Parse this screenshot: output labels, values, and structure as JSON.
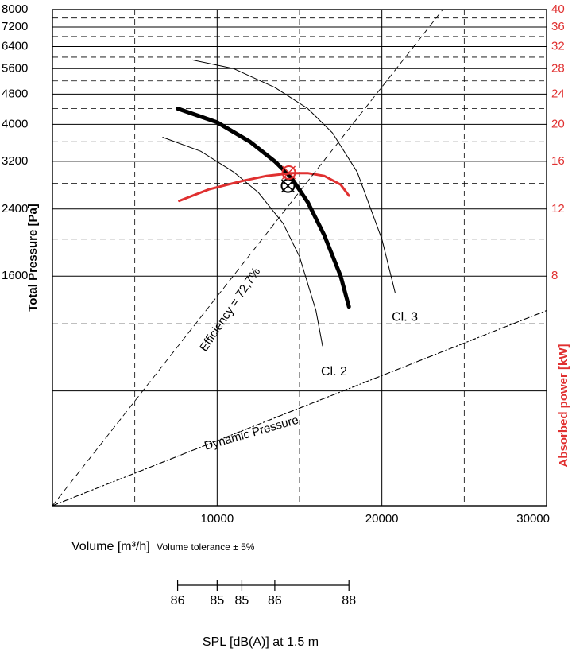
{
  "chart_data": {
    "type": "line",
    "title": "",
    "xlabel": "Volume [m³/h]",
    "xlabel_note": "Volume tolerance ± 5%",
    "ylabel": "Total Pressure [Pa]",
    "y2label": "Absorbed power [kW]",
    "x_ticks": [
      "10000",
      "20000",
      "30000"
    ],
    "xlim": [
      0,
      30000
    ],
    "y_ticks": [
      "1600",
      "2400",
      "3200",
      "4000",
      "4800",
      "5600",
      "6400",
      "7200",
      "8000"
    ],
    "y2_ticks": [
      "8",
      "12",
      "16",
      "20",
      "24",
      "28",
      "32",
      "36",
      "40"
    ],
    "y2_ticks_visible": [
      "8",
      "12",
      "16",
      "20",
      "24",
      "28",
      "32",
      "36",
      "40"
    ],
    "y_scale": "log",
    "ylim": [
      400,
      8000
    ],
    "grid": true,
    "series": [
      {
        "name": "",
        "role": "fan-curve-main",
        "color": "#000000",
        "x": [
          7600,
          10000,
          12000,
          13500,
          14500,
          15500,
          16500,
          17500,
          18000
        ],
        "y": [
          4400,
          4050,
          3600,
          3200,
          2900,
          2500,
          2050,
          1600,
          1330
        ]
      },
      {
        "name": "Cl. 2",
        "role": "class-limit",
        "color": "#000000",
        "x": [
          6700,
          9000,
          11000,
          12500,
          14000,
          15000,
          16000,
          16400
        ],
        "y": [
          3700,
          3400,
          3000,
          2650,
          2200,
          1800,
          1300,
          1050
        ]
      },
      {
        "name": "Cl. 3",
        "role": "class-limit",
        "color": "#000000",
        "x": [
          8500,
          11000,
          13500,
          15500,
          17000,
          18500,
          20000,
          20800
        ],
        "y": [
          5900,
          5600,
          5000,
          4400,
          3800,
          3000,
          2000,
          1450
        ]
      },
      {
        "name": "",
        "role": "absorbed-power",
        "axis": "right",
        "color": "#e03030",
        "x": [
          7700,
          9500,
          11500,
          13000,
          14500,
          15500,
          16500,
          17500,
          18000
        ],
        "y": [
          2520,
          2700,
          2840,
          2930,
          2980,
          2980,
          2930,
          2780,
          2600
        ]
      },
      {
        "name": "Efficiency = 72,7%",
        "role": "efficiency-line",
        "color": "#000000",
        "x": [
          0,
          23700
        ],
        "y": [
          400,
          8000
        ]
      },
      {
        "name": "Dynamic Pressure",
        "role": "dynamic-pressure",
        "color": "#000000",
        "x": [
          0,
          30000
        ],
        "y": [
          400,
          1300
        ]
      }
    ],
    "operating_points": [
      {
        "x": 14300,
        "y": 2760,
        "color": "#000000"
      },
      {
        "x": 14350,
        "y": 2990,
        "color": "#e03030"
      }
    ],
    "annotations": {
      "efficiency": "Efficiency = 72,7%",
      "dynamic": "Dynamic Pressure",
      "cl2": "Cl. 2",
      "cl3": "Cl. 3"
    },
    "spl": {
      "values": [
        "86",
        "85",
        "85",
        "86",
        "88"
      ],
      "at_volume": [
        7600,
        10000,
        11500,
        13500,
        18000
      ],
      "label": "SPL [dB(A)] at 1.5 m"
    }
  }
}
